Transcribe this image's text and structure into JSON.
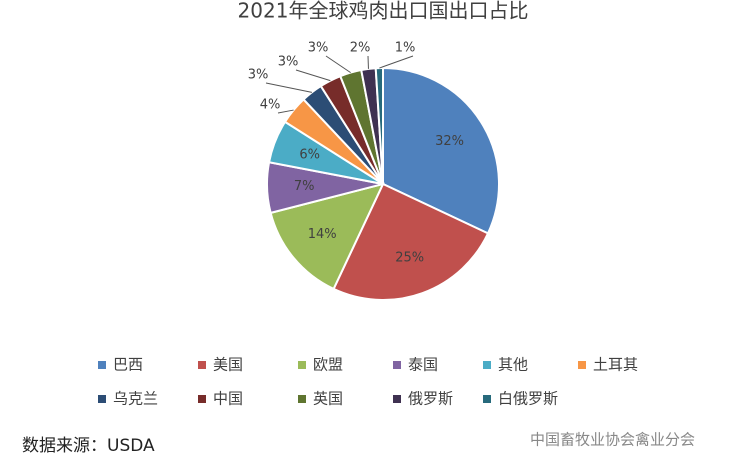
{
  "chart_data": {
    "type": "pie",
    "title": "2021年全球鸡肉出口国出口占比",
    "categories": [
      "巴西",
      "美国",
      "欧盟",
      "泰国",
      "其他",
      "土耳其",
      "乌克兰",
      "中国",
      "英国",
      "俄罗斯",
      "白俄罗斯"
    ],
    "values": [
      32,
      25,
      14,
      7,
      6,
      4,
      3,
      3,
      3,
      2,
      1
    ],
    "value_labels": [
      "32%",
      "25%",
      "14%",
      "7%",
      "6%",
      "4%",
      "3%",
      "3%",
      "3%",
      "2%",
      "1%"
    ],
    "colors": [
      "#4f81bd",
      "#c0504d",
      "#9bbb59",
      "#8064a2",
      "#4bacc6",
      "#f79646",
      "#2c4d75",
      "#772c2a",
      "#5f7530",
      "#3f3151",
      "#276a7c"
    ],
    "legend": "bottom"
  },
  "source": "数据来源：USDA",
  "watermark": "中国畜牧业协会禽业分会"
}
